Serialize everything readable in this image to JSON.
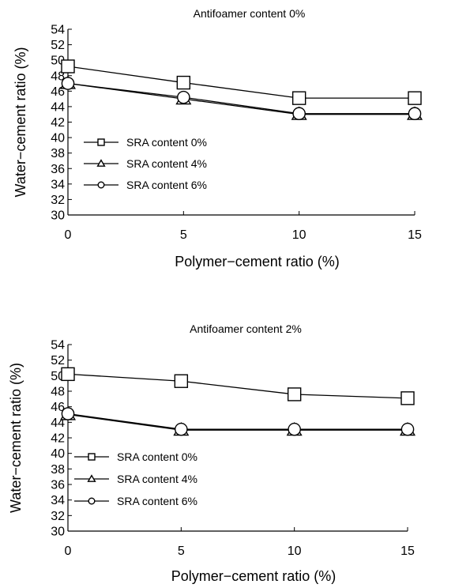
{
  "chart_data": [
    {
      "type": "line",
      "title": "Antifoamer content 0%",
      "xlabel": "Polymer−cement ratio (%)",
      "ylabel": "Water−cement ratio (%)",
      "x": [
        0,
        5,
        10,
        15
      ],
      "xlim": [
        0,
        15
      ],
      "ylim": [
        30,
        54
      ],
      "xticks": [
        "0",
        "5",
        "10",
        "15"
      ],
      "yticks": [
        "30",
        "32",
        "34",
        "36",
        "38",
        "40",
        "42",
        "44",
        "46",
        "48",
        "50",
        "52",
        "54"
      ],
      "grid": false,
      "legend_position": "left",
      "series": [
        {
          "name": "SRA content 0%",
          "marker": "square",
          "values": [
            49.2,
            47.1,
            45.1,
            45.1
          ]
        },
        {
          "name": "SRA content 4%",
          "marker": "triangle",
          "values": [
            47.0,
            45.0,
            43.0,
            43.0
          ]
        },
        {
          "name": "SRA content 6%",
          "marker": "circle",
          "values": [
            47.0,
            45.2,
            43.1,
            43.1
          ]
        }
      ]
    },
    {
      "type": "line",
      "title": "Antifoamer content 2%",
      "xlabel": "Polymer−cement ratio (%)",
      "ylabel": "Water−cement ratio (%)",
      "x": [
        0,
        5,
        10,
        15
      ],
      "xlim": [
        0,
        15
      ],
      "ylim": [
        30,
        54
      ],
      "xticks": [
        "0",
        "5",
        "10",
        "15"
      ],
      "yticks": [
        "30",
        "32",
        "34",
        "36",
        "38",
        "40",
        "42",
        "44",
        "46",
        "48",
        "50",
        "52",
        "54"
      ],
      "grid": false,
      "legend_position": "left",
      "series": [
        {
          "name": "SRA content 0%",
          "marker": "square",
          "values": [
            50.2,
            49.3,
            47.6,
            47.1
          ]
        },
        {
          "name": "SRA content 4%",
          "marker": "triangle",
          "values": [
            45.0,
            43.0,
            43.0,
            43.0
          ]
        },
        {
          "name": "SRA content 6%",
          "marker": "circle",
          "values": [
            45.1,
            43.1,
            43.1,
            43.1
          ]
        }
      ]
    }
  ]
}
